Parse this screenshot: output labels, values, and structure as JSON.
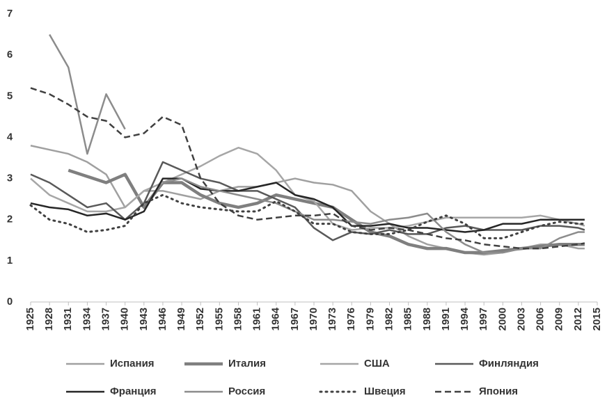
{
  "chart_data": {
    "type": "line",
    "x": [
      1925,
      1928,
      1931,
      1934,
      1937,
      1940,
      1943,
      1946,
      1949,
      1952,
      1955,
      1958,
      1961,
      1964,
      1967,
      1970,
      1973,
      1976,
      1979,
      1982,
      1985,
      1988,
      1991,
      1994,
      1997,
      2000,
      2003,
      2006,
      2009,
      2012,
      2013
    ],
    "xlim": [
      1925,
      2015
    ],
    "xticks": [
      1925,
      1928,
      1931,
      1934,
      1937,
      1940,
      1943,
      1946,
      1949,
      1952,
      1955,
      1958,
      1961,
      1964,
      1967,
      1970,
      1973,
      1976,
      1979,
      1982,
      1985,
      1988,
      1991,
      1994,
      1997,
      2000,
      2003,
      2006,
      2009,
      2012,
      2015
    ],
    "ylim": [
      0,
      7
    ],
    "yticks": [
      0,
      1,
      2,
      3,
      4,
      5,
      6,
      7
    ],
    "legend": "bottom",
    "series": [
      {
        "name": "Испания",
        "color": "#a0a0a0",
        "width": 2.5,
        "dash": "solid",
        "values": [
          3.8,
          3.7,
          3.6,
          3.4,
          3.1,
          2.3,
          2.7,
          2.7,
          2.6,
          2.5,
          2.7,
          2.8,
          2.8,
          2.9,
          3.0,
          2.9,
          2.85,
          2.7,
          2.2,
          1.9,
          1.6,
          1.4,
          1.3,
          1.2,
          1.15,
          1.2,
          1.3,
          1.4,
          1.4,
          1.3,
          1.3
        ]
      },
      {
        "name": "Италия",
        "color": "#7f7f7f",
        "width": 4.5,
        "dash": "solid",
        "values": [
          null,
          null,
          3.2,
          3.05,
          2.9,
          3.1,
          2.3,
          2.9,
          2.9,
          2.6,
          2.4,
          2.3,
          2.4,
          2.6,
          2.5,
          2.4,
          2.3,
          2.0,
          1.7,
          1.6,
          1.4,
          1.3,
          1.3,
          1.2,
          1.2,
          1.25,
          1.3,
          1.35,
          1.4,
          1.4,
          1.4
        ]
      },
      {
        "name": "США",
        "color": "#a6a6a6",
        "width": 2.5,
        "dash": "solid",
        "values": [
          3.0,
          2.6,
          2.4,
          2.2,
          2.2,
          2.3,
          2.7,
          2.9,
          3.1,
          3.3,
          3.55,
          3.75,
          3.6,
          3.2,
          2.6,
          2.45,
          1.9,
          1.75,
          1.8,
          1.8,
          1.85,
          1.95,
          2.05,
          2.05,
          2.05,
          2.05,
          2.05,
          2.1,
          2.0,
          1.9,
          1.85
        ]
      },
      {
        "name": "Финляндия",
        "color": "#595959",
        "width": 2.5,
        "dash": "solid",
        "values": [
          3.1,
          2.9,
          2.6,
          2.3,
          2.4,
          2.0,
          2.4,
          3.4,
          3.2,
          3.0,
          2.9,
          2.7,
          2.7,
          2.5,
          2.3,
          1.8,
          1.5,
          1.7,
          1.65,
          1.75,
          1.65,
          1.65,
          1.8,
          1.85,
          1.75,
          1.75,
          1.75,
          1.85,
          1.85,
          1.8,
          1.75
        ]
      },
      {
        "name": "Франция",
        "color": "#262626",
        "width": 2.5,
        "dash": "solid",
        "values": [
          2.4,
          2.3,
          2.25,
          2.1,
          2.15,
          2.0,
          2.2,
          3.0,
          3.0,
          2.75,
          2.7,
          2.7,
          2.8,
          2.9,
          2.6,
          2.5,
          2.3,
          1.85,
          1.85,
          1.9,
          1.8,
          1.8,
          1.75,
          1.7,
          1.75,
          1.9,
          1.9,
          2.0,
          2.0,
          2.0,
          2.0
        ]
      },
      {
        "name": "Россия",
        "color": "#8c8c8c",
        "width": 2.5,
        "dash": "solid",
        "values": [
          null,
          6.5,
          5.7,
          3.6,
          5.05,
          4.2,
          null,
          2.9,
          3.0,
          2.8,
          2.7,
          2.6,
          2.5,
          2.4,
          2.2,
          2.0,
          2.0,
          1.95,
          1.9,
          2.0,
          2.05,
          2.15,
          1.7,
          1.4,
          1.2,
          1.2,
          1.3,
          1.3,
          1.55,
          1.7,
          1.7
        ]
      },
      {
        "name": "Швеция",
        "color": "#404040",
        "width": 3,
        "dash": "dotted",
        "values": [
          2.35,
          2.0,
          1.9,
          1.7,
          1.75,
          1.85,
          2.4,
          2.6,
          2.4,
          2.3,
          2.25,
          2.2,
          2.2,
          2.45,
          2.2,
          1.9,
          1.9,
          1.7,
          1.65,
          1.65,
          1.75,
          1.95,
          2.1,
          1.9,
          1.55,
          1.55,
          1.7,
          1.85,
          1.95,
          1.9,
          1.9
        ]
      },
      {
        "name": "Япония",
        "color": "#404040",
        "width": 2.5,
        "dash": "dashed",
        "values": [
          5.2,
          5.05,
          4.8,
          4.5,
          4.4,
          4.0,
          4.1,
          4.5,
          4.3,
          3.0,
          2.4,
          2.1,
          2.0,
          2.05,
          2.1,
          2.1,
          2.15,
          1.85,
          1.75,
          1.8,
          1.75,
          1.65,
          1.55,
          1.5,
          1.4,
          1.35,
          1.3,
          1.3,
          1.35,
          1.4,
          1.43
        ]
      }
    ]
  }
}
